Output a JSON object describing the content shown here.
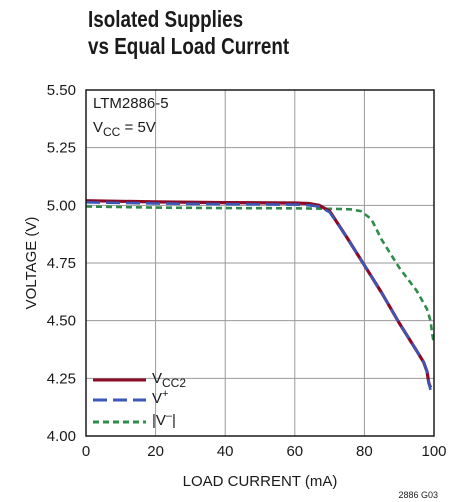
{
  "chart_data": {
    "type": "line",
    "title": [
      "Isolated Supplies",
      "vs Equal Load Current"
    ],
    "xlabel": "LOAD CURRENT (mA)",
    "ylabel": "VOLTAGE (V)",
    "xlim": [
      0,
      100
    ],
    "ylim": [
      4.0,
      5.5
    ],
    "x_ticks": [
      "0",
      "20",
      "40",
      "60",
      "80",
      "100"
    ],
    "y_ticks": [
      "4.00",
      "4.25",
      "4.50",
      "4.75",
      "5.00",
      "5.25",
      "5.50"
    ],
    "grid": true,
    "annotation": [
      "LTM2886-5",
      "V_CC = 5V"
    ],
    "figure_id": "2886 G03",
    "legend_position": "bottom-left",
    "series": [
      {
        "name": "V_CC2",
        "color": "#8b0a25",
        "style": "solid",
        "x": [
          0,
          20,
          40,
          60,
          64,
          67,
          70,
          75,
          80,
          85,
          90,
          95,
          97,
          98,
          98.5,
          99
        ],
        "y": [
          5.02,
          5.015,
          5.012,
          5.01,
          5.008,
          5.0,
          4.975,
          4.86,
          4.74,
          4.62,
          4.49,
          4.37,
          4.32,
          4.28,
          4.23,
          4.21
        ]
      },
      {
        "name": "V+",
        "color": "#3b57b8",
        "style": "dash",
        "x": [
          0,
          20,
          40,
          60,
          64,
          67,
          70,
          75,
          80,
          85,
          90,
          95,
          97,
          98,
          98.5,
          99
        ],
        "y": [
          5.013,
          5.008,
          5.005,
          5.003,
          5.0,
          4.995,
          4.97,
          4.86,
          4.74,
          4.62,
          4.49,
          4.37,
          4.32,
          4.28,
          4.23,
          4.2
        ]
      },
      {
        "name": "|V−|",
        "color": "#2e8b4a",
        "style": "dot",
        "x": [
          0,
          20,
          40,
          60,
          70,
          76,
          79,
          82,
          85,
          90,
          95,
          98,
          99,
          99.5,
          100
        ],
        "y": [
          4.995,
          4.99,
          4.988,
          4.987,
          4.985,
          4.983,
          4.975,
          4.94,
          4.85,
          4.73,
          4.63,
          4.55,
          4.5,
          4.44,
          4.4
        ]
      }
    ]
  }
}
